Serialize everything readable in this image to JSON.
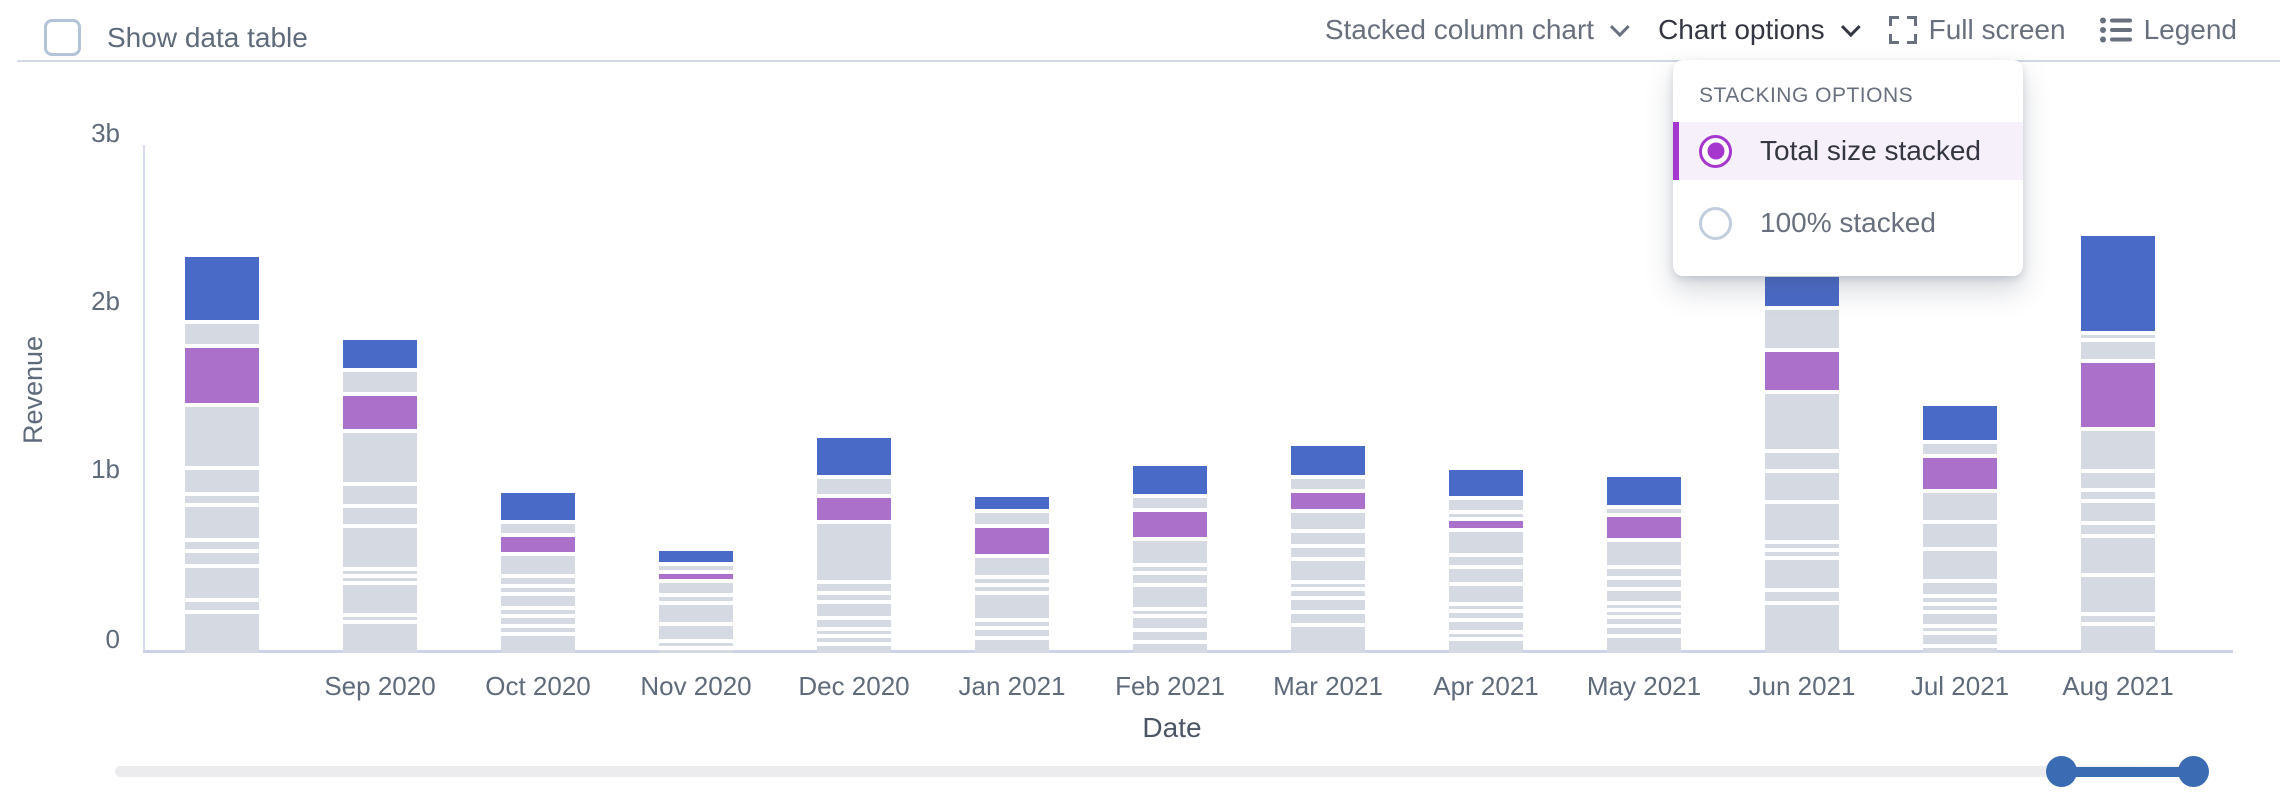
{
  "header": {
    "show_data_table_label": "Show data table",
    "show_data_table_checked": false,
    "chart_type_label": "Stacked column chart",
    "chart_options_label": "Chart options",
    "full_screen_label": "Full screen",
    "legend_label": "Legend"
  },
  "stacking_popover": {
    "title": "STACKING OPTIONS",
    "options": [
      {
        "label": "Total size stacked",
        "selected": true
      },
      {
        "label": "100% stacked",
        "selected": false
      }
    ],
    "accent_color": "#a637ce"
  },
  "chart_data": {
    "type": "bar",
    "stacked": true,
    "xlabel": "Date",
    "ylabel": "Revenue",
    "y_tick_labels": [
      "0",
      "1b",
      "2b",
      "3b"
    ],
    "ylim_billions": [
      0,
      3
    ],
    "grid": false,
    "legend_position": "hidden",
    "unit": "billions",
    "colors": {
      "g": "#d5dae2",
      "p": "#aa70ca",
      "b": "#4a6ac8"
    },
    "categories": [
      "",
      "Sep 2020",
      "Oct 2020",
      "Nov 2020",
      "Dec 2020",
      "Jan 2021",
      "Feb 2021",
      "Mar 2021",
      "Apr 2021",
      "May 2021",
      "Jun 2021",
      "Jul 2021",
      "Aug 2021"
    ],
    "totals_billions": [
      2.39,
      1.79,
      0.92,
      0.54,
      1.26,
      0.9,
      1.11,
      1.24,
      1.03,
      1.01,
      2.26,
      1.48,
      2.47
    ],
    "bars": [
      {
        "label": "",
        "segments": [
          {
            "c": "g",
            "v": 0.232
          },
          {
            "c": "g",
            "v": 0.048
          },
          {
            "c": "g",
            "v": 0.179
          },
          {
            "c": "g",
            "v": 0.065
          },
          {
            "c": "g",
            "v": 0.042
          },
          {
            "c": "g",
            "v": 0.185
          },
          {
            "c": "g",
            "v": 0.042
          },
          {
            "c": "g",
            "v": 0.131
          },
          {
            "c": "g",
            "v": 0.351
          },
          {
            "c": "p",
            "v": 0.327
          },
          {
            "c": "g",
            "v": 0.119
          },
          {
            "c": "b",
            "v": 0.375
          }
        ]
      },
      {
        "label": "Sep 2020",
        "segments": [
          {
            "c": "g",
            "v": 0.173
          },
          {
            "c": "g",
            "v": 0.018
          },
          {
            "c": "g",
            "v": 0.167
          },
          {
            "c": "g",
            "v": 0.018
          },
          {
            "c": "g",
            "v": 0.018
          },
          {
            "c": "g",
            "v": 0.232
          },
          {
            "c": "g",
            "v": 0.095
          },
          {
            "c": "g",
            "v": 0.107
          },
          {
            "c": "g",
            "v": 0.292
          },
          {
            "c": "p",
            "v": 0.196
          },
          {
            "c": "g",
            "v": 0.119
          },
          {
            "c": "b",
            "v": 0.167
          }
        ]
      },
      {
        "label": "Oct 2020",
        "segments": [
          {
            "c": "g",
            "v": 0.101
          },
          {
            "c": "g",
            "v": 0.024
          },
          {
            "c": "g",
            "v": 0.036
          },
          {
            "c": "g",
            "v": 0.024
          },
          {
            "c": "g",
            "v": 0.06
          },
          {
            "c": "g",
            "v": 0.024
          },
          {
            "c": "g",
            "v": 0.036
          },
          {
            "c": "g",
            "v": 0.107
          },
          {
            "c": "p",
            "v": 0.089
          },
          {
            "c": "g",
            "v": 0.054
          },
          {
            "c": "b",
            "v": 0.161
          }
        ]
      },
      {
        "label": "Nov 2020",
        "segments": [
          {
            "c": "g",
            "v": 0.018
          },
          {
            "c": "g",
            "v": 0.018
          },
          {
            "c": "g",
            "v": 0.077
          },
          {
            "c": "g",
            "v": 0.101
          },
          {
            "c": "g",
            "v": 0.024
          },
          {
            "c": "g",
            "v": 0.06
          },
          {
            "c": "p",
            "v": 0.03
          },
          {
            "c": "g",
            "v": 0.024
          },
          {
            "c": "b",
            "v": 0.065
          }
        ]
      },
      {
        "label": "Dec 2020",
        "segments": [
          {
            "c": "g",
            "v": 0.042
          },
          {
            "c": "g",
            "v": 0.024
          },
          {
            "c": "g",
            "v": 0.018
          },
          {
            "c": "g",
            "v": 0.042
          },
          {
            "c": "g",
            "v": 0.071
          },
          {
            "c": "g",
            "v": 0.03
          },
          {
            "c": "g",
            "v": 0.042
          },
          {
            "c": "g",
            "v": 0.333
          },
          {
            "c": "p",
            "v": 0.131
          },
          {
            "c": "g",
            "v": 0.089
          },
          {
            "c": "b",
            "v": 0.22
          }
        ]
      },
      {
        "label": "Jan 2021",
        "segments": [
          {
            "c": "g",
            "v": 0.077
          },
          {
            "c": "g",
            "v": 0.036
          },
          {
            "c": "g",
            "v": 0.024
          },
          {
            "c": "g",
            "v": 0.137
          },
          {
            "c": "g",
            "v": 0.024
          },
          {
            "c": "g",
            "v": 0.024
          },
          {
            "c": "g",
            "v": 0.101
          },
          {
            "c": "p",
            "v": 0.155
          },
          {
            "c": "g",
            "v": 0.065
          },
          {
            "c": "b",
            "v": 0.071
          }
        ]
      },
      {
        "label": "Feb 2021",
        "segments": [
          {
            "c": "g",
            "v": 0.054
          },
          {
            "c": "g",
            "v": 0.048
          },
          {
            "c": "g",
            "v": 0.06
          },
          {
            "c": "g",
            "v": 0.018
          },
          {
            "c": "g",
            "v": 0.119
          },
          {
            "c": "g",
            "v": 0.048
          },
          {
            "c": "g",
            "v": 0.024
          },
          {
            "c": "g",
            "v": 0.131
          },
          {
            "c": "p",
            "v": 0.149
          },
          {
            "c": "g",
            "v": 0.06
          },
          {
            "c": "b",
            "v": 0.167
          }
        ]
      },
      {
        "label": "Mar 2021",
        "segments": [
          {
            "c": "g",
            "v": 0.155
          },
          {
            "c": "g",
            "v": 0.054
          },
          {
            "c": "g",
            "v": 0.06
          },
          {
            "c": "g",
            "v": 0.03
          },
          {
            "c": "g",
            "v": 0.018
          },
          {
            "c": "g",
            "v": 0.113
          },
          {
            "c": "g",
            "v": 0.054
          },
          {
            "c": "g",
            "v": 0.065
          },
          {
            "c": "g",
            "v": 0.095
          },
          {
            "c": "p",
            "v": 0.095
          },
          {
            "c": "g",
            "v": 0.06
          },
          {
            "c": "b",
            "v": 0.173
          }
        ]
      },
      {
        "label": "Apr 2021",
        "segments": [
          {
            "c": "g",
            "v": 0.071
          },
          {
            "c": "g",
            "v": 0.018
          },
          {
            "c": "g",
            "v": 0.048
          },
          {
            "c": "g",
            "v": 0.03
          },
          {
            "c": "g",
            "v": 0.018
          },
          {
            "c": "g",
            "v": 0.095
          },
          {
            "c": "g",
            "v": 0.077
          },
          {
            "c": "g",
            "v": 0.048
          },
          {
            "c": "g",
            "v": 0.125
          },
          {
            "c": "p",
            "v": 0.042
          },
          {
            "c": "g",
            "v": 0.018
          },
          {
            "c": "g",
            "v": 0.06
          },
          {
            "c": "b",
            "v": 0.155
          }
        ]
      },
      {
        "label": "May 2021",
        "segments": [
          {
            "c": "g",
            "v": 0.089
          },
          {
            "c": "g",
            "v": 0.036
          },
          {
            "c": "g",
            "v": 0.03
          },
          {
            "c": "g",
            "v": 0.018
          },
          {
            "c": "g",
            "v": 0.018
          },
          {
            "c": "g",
            "v": 0.06
          },
          {
            "c": "g",
            "v": 0.042
          },
          {
            "c": "g",
            "v": 0.042
          },
          {
            "c": "g",
            "v": 0.137
          },
          {
            "c": "p",
            "v": 0.125
          },
          {
            "c": "g",
            "v": 0.024
          },
          {
            "c": "b",
            "v": 0.167
          }
        ]
      },
      {
        "label": "Jun 2021",
        "segments": [
          {
            "c": "g",
            "v": 0.286
          },
          {
            "c": "g",
            "v": 0.054
          },
          {
            "c": "g",
            "v": 0.167
          },
          {
            "c": "g",
            "v": 0.024
          },
          {
            "c": "g",
            "v": 0.024
          },
          {
            "c": "g",
            "v": 0.214
          },
          {
            "c": "g",
            "v": 0.161
          },
          {
            "c": "g",
            "v": 0.095
          },
          {
            "c": "g",
            "v": 0.327
          },
          {
            "c": "p",
            "v": 0.226
          },
          {
            "c": "g",
            "v": 0.226
          },
          {
            "c": "b",
            "v": 0.173
          }
        ]
      },
      {
        "label": "Jul 2021",
        "segments": [
          {
            "c": "g",
            "v": 0.03
          },
          {
            "c": "g",
            "v": 0.054
          },
          {
            "c": "g",
            "v": 0.018
          },
          {
            "c": "g",
            "v": 0.06
          },
          {
            "c": "g",
            "v": 0.024
          },
          {
            "c": "g",
            "v": 0.024
          },
          {
            "c": "g",
            "v": 0.065
          },
          {
            "c": "g",
            "v": 0.167
          },
          {
            "c": "g",
            "v": 0.137
          },
          {
            "c": "g",
            "v": 0.161
          },
          {
            "c": "p",
            "v": 0.185
          },
          {
            "c": "g",
            "v": 0.06
          },
          {
            "c": "b",
            "v": 0.202
          }
        ]
      },
      {
        "label": "Aug 2021",
        "segments": [
          {
            "c": "g",
            "v": 0.161
          },
          {
            "c": "g",
            "v": 0.036
          },
          {
            "c": "g",
            "v": 0.208
          },
          {
            "c": "g",
            "v": 0.208
          },
          {
            "c": "g",
            "v": 0.054
          },
          {
            "c": "g",
            "v": 0.107
          },
          {
            "c": "g",
            "v": 0.042
          },
          {
            "c": "g",
            "v": 0.089
          },
          {
            "c": "g",
            "v": 0.226
          },
          {
            "c": "p",
            "v": 0.381
          },
          {
            "c": "g",
            "v": 0.101
          },
          {
            "c": "g",
            "v": 0.017
          },
          {
            "c": "b",
            "v": 0.565
          }
        ]
      }
    ]
  },
  "range_slider": {
    "type": "dual-range",
    "selected_range_fraction": [
      0.93,
      0.993
    ],
    "handle_color": "#3a6bb3"
  }
}
